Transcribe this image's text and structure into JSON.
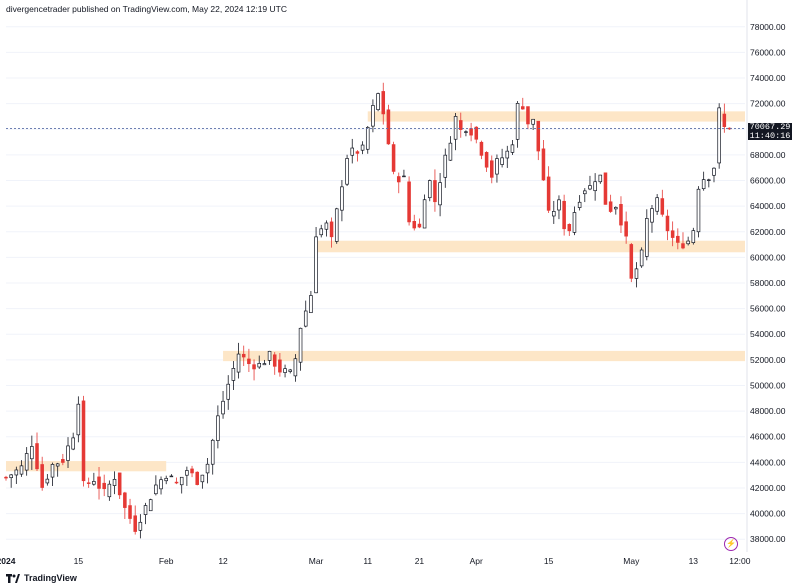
{
  "header": {
    "text": "divergencetrader published on TradingView.com, May 22, 2024 12:19 UTC"
  },
  "footer": {
    "brand": "TradingView"
  },
  "colors": {
    "up": "#131722",
    "down": "#e53935",
    "zone": "#fde6c7",
    "grid": "#f0f3fa",
    "currentLine": "#5b6fa8"
  },
  "chart_data": {
    "type": "candlestick",
    "y_axis": {
      "min": 37000,
      "max": 79000,
      "ticks": [
        "78000.00",
        "76000.00",
        "74000.00",
        "72000.00",
        "70000.00",
        "68000.00",
        "66000.00",
        "64000.00",
        "62000.00",
        "60000.00",
        "58000.00",
        "56000.00",
        "54000.00",
        "52000.00",
        "50000.00",
        "48000.00",
        "46000.00",
        "44000.00",
        "42000.00",
        "40000.00",
        "38000.00"
      ],
      "tick_values": [
        78000,
        76000,
        74000,
        72000,
        70000,
        68000,
        66000,
        64000,
        62000,
        60000,
        58000,
        56000,
        54000,
        52000,
        50000,
        48000,
        46000,
        44000,
        42000,
        40000,
        38000
      ]
    },
    "x_axis": {
      "labels": [
        "2024",
        "15",
        "Feb",
        "12",
        "Mar",
        "11",
        "21",
        "Apr",
        "15",
        "May",
        "13",
        "12:00"
      ],
      "label_days": [
        0,
        14,
        31,
        42,
        60,
        70,
        80,
        91,
        105,
        121,
        133,
        142
      ]
    },
    "current_price": {
      "value": 70067.29,
      "label": "70067.29",
      "countdown": "11:40:16"
    },
    "zones": [
      {
        "from_day": 0,
        "to_day": 31,
        "low": 43300,
        "high": 44100
      },
      {
        "from_day": 42,
        "to_day": 143,
        "low": 51900,
        "high": 52700
      },
      {
        "from_day": 60,
        "to_day": 143,
        "low": 60400,
        "high": 61300
      },
      {
        "from_day": 70,
        "to_day": 143,
        "low": 70600,
        "high": 71400
      }
    ],
    "path": [
      [
        0,
        42800
      ],
      [
        3,
        43600
      ],
      [
        5,
        45500
      ],
      [
        7,
        42100
      ],
      [
        9,
        43800
      ],
      [
        11,
        44200
      ],
      [
        13,
        46200
      ],
      [
        14,
        48900
      ],
      [
        15,
        42200
      ],
      [
        17,
        42700
      ],
      [
        19,
        41600
      ],
      [
        21,
        42900
      ],
      [
        23,
        40400
      ],
      [
        25,
        38900
      ],
      [
        27,
        40500
      ],
      [
        29,
        42200
      ],
      [
        31,
        43100
      ],
      [
        33,
        42300
      ],
      [
        35,
        43400
      ],
      [
        37,
        42600
      ],
      [
        39,
        43900
      ],
      [
        41,
        47500
      ],
      [
        43,
        50100
      ],
      [
        45,
        52500
      ],
      [
        47,
        51700
      ],
      [
        49,
        51600
      ],
      [
        51,
        52300
      ],
      [
        53,
        51200
      ],
      [
        55,
        50900
      ],
      [
        56,
        52100
      ],
      [
        57,
        54600
      ],
      [
        59,
        57100
      ],
      [
        60,
        61900
      ],
      [
        62,
        62500
      ],
      [
        63,
        61300
      ],
      [
        65,
        65800
      ],
      [
        66,
        67900
      ],
      [
        67,
        68200
      ],
      [
        69,
        68400
      ],
      [
        70,
        70100
      ],
      [
        71,
        71600
      ],
      [
        72,
        72700
      ],
      [
        73,
        71300
      ],
      [
        74,
        68900
      ],
      [
        75,
        66400
      ],
      [
        77,
        66100
      ],
      [
        78,
        62800
      ],
      [
        79,
        62500
      ],
      [
        80,
        62300
      ],
      [
        81,
        64900
      ],
      [
        82,
        65900
      ],
      [
        83,
        64400
      ],
      [
        84,
        66100
      ],
      [
        86,
        69300
      ],
      [
        87,
        70900
      ],
      [
        88,
        69900
      ],
      [
        89,
        70200
      ],
      [
        90,
        69900
      ],
      [
        91,
        69200
      ],
      [
        92,
        68300
      ],
      [
        94,
        66400
      ],
      [
        95,
        67400
      ],
      [
        97,
        68200
      ],
      [
        98,
        69100
      ],
      [
        99,
        71800
      ],
      [
        100,
        71900
      ],
      [
        101,
        70500
      ],
      [
        102,
        70600
      ],
      [
        104,
        66100
      ],
      [
        105,
        63300
      ],
      [
        107,
        64200
      ],
      [
        108,
        62500
      ],
      [
        109,
        62200
      ],
      [
        110,
        63600
      ],
      [
        111,
        64700
      ],
      [
        112,
        65400
      ],
      [
        113,
        65500
      ],
      [
        114,
        66200
      ],
      [
        115,
        66300
      ],
      [
        116,
        64300
      ],
      [
        117,
        63800
      ],
      [
        118,
        64100
      ],
      [
        119,
        62900
      ],
      [
        120,
        61300
      ],
      [
        121,
        58200
      ],
      [
        122,
        59100
      ],
      [
        123,
        60200
      ],
      [
        124,
        62900
      ],
      [
        125,
        63900
      ],
      [
        126,
        64300
      ],
      [
        127,
        63100
      ],
      [
        128,
        62200
      ],
      [
        129,
        61500
      ],
      [
        130,
        60900
      ],
      [
        131,
        61100
      ],
      [
        132,
        61300
      ],
      [
        133,
        62200
      ],
      [
        134,
        65600
      ],
      [
        135,
        66200
      ],
      [
        136,
        66400
      ],
      [
        137,
        67100
      ],
      [
        138,
        71400
      ],
      [
        139,
        70100
      ],
      [
        140,
        70067
      ]
    ]
  }
}
